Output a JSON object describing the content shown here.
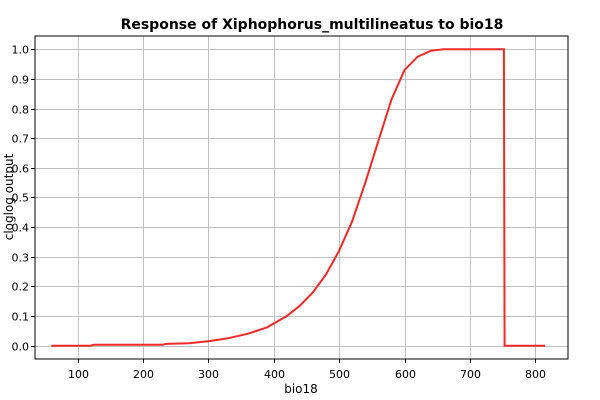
{
  "chart_data": {
    "type": "line",
    "title": "Response of Xiphophorus_multilineatus to bio18",
    "xlabel": "bio18",
    "ylabel": "cloglog output",
    "xlim": [
      35,
      850
    ],
    "ylim": [
      -0.045,
      1.045
    ],
    "xticks": [
      100,
      200,
      300,
      400,
      500,
      600,
      700,
      800
    ],
    "yticks": [
      0.0,
      0.1,
      0.2,
      0.3,
      0.4,
      0.5,
      0.6,
      0.7,
      0.8,
      0.9,
      1.0
    ],
    "grid": true,
    "legend": "none",
    "series_color": "#ee2a2a",
    "x": [
      60,
      120,
      125,
      230,
      235,
      270,
      300,
      330,
      360,
      390,
      420,
      440,
      460,
      480,
      500,
      520,
      540,
      560,
      580,
      600,
      620,
      640,
      660,
      680,
      700,
      720,
      740,
      752,
      753,
      800,
      815
    ],
    "y": [
      0.0,
      0.0,
      0.003,
      0.003,
      0.006,
      0.008,
      0.015,
      0.025,
      0.04,
      0.062,
      0.1,
      0.135,
      0.18,
      0.24,
      0.32,
      0.42,
      0.55,
      0.69,
      0.83,
      0.93,
      0.975,
      0.995,
      1.0,
      1.0,
      1.0,
      1.0,
      1.0,
      1.0,
      0.0,
      0.0,
      0.0
    ]
  }
}
